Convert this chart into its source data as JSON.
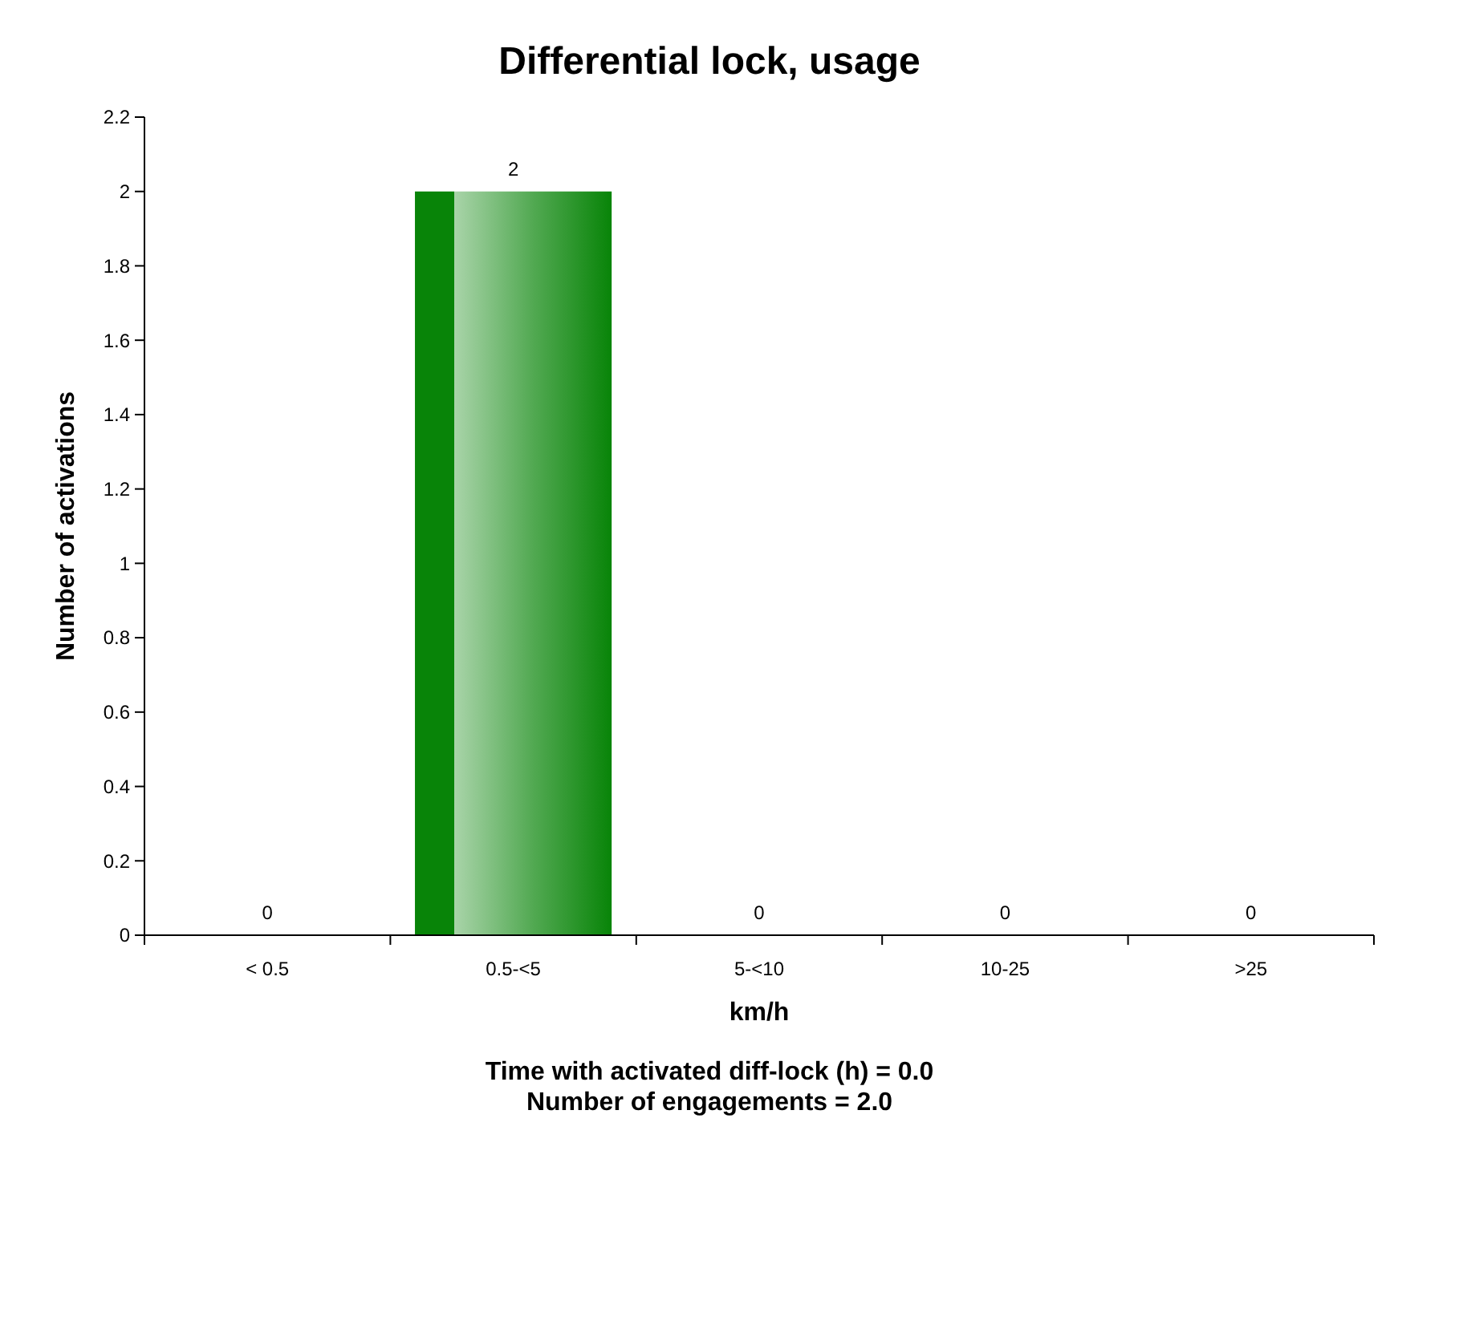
{
  "chart_data": {
    "type": "bar",
    "title": "Differential lock, usage",
    "xlabel": "km/h",
    "ylabel": "Number of activations",
    "categories": [
      "< 0.5",
      "0.5-<5",
      "5-<10",
      "10-25",
      ">25"
    ],
    "values": [
      0,
      2,
      0,
      0,
      0
    ],
    "color": "#088408",
    "ylim": [
      0,
      2.2
    ],
    "yticks": [
      0,
      0.2,
      0.4,
      0.6,
      0.8,
      1,
      1.2,
      1.4,
      1.6,
      1.8,
      2,
      2.2
    ],
    "data_labels": true,
    "grid": false,
    "annotations": [
      "Time with activated diff-lock (h) = 0.0",
      "Number of engagements = 2.0"
    ]
  }
}
